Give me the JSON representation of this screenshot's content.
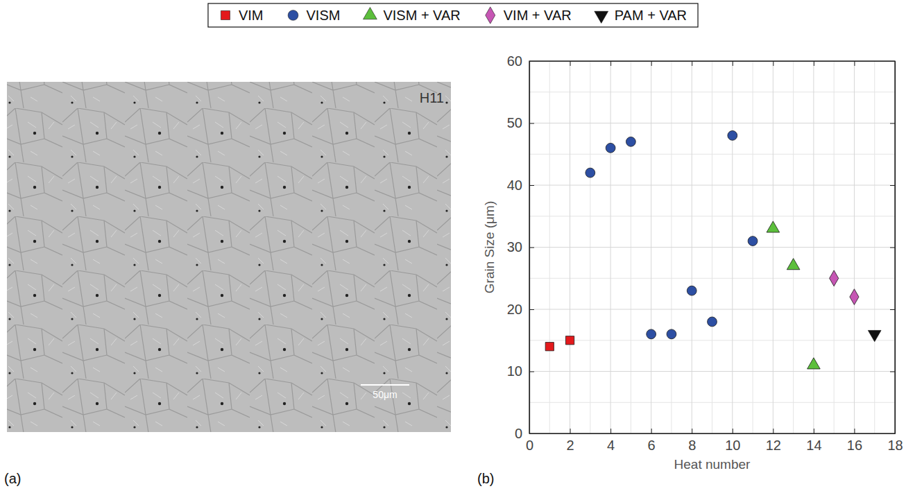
{
  "chart_data": {
    "type": "scatter",
    "x_label": "Heat number",
    "y_label": "Grain Size (μm)",
    "xlim": [
      0,
      18
    ],
    "ylim": [
      0,
      60
    ],
    "xticks": [
      0,
      2,
      4,
      6,
      8,
      10,
      12,
      14,
      16,
      18
    ],
    "yticks": [
      0,
      10,
      20,
      30,
      40,
      50,
      60
    ],
    "grid": true,
    "legend": "top",
    "series": [
      {
        "name": "VIM",
        "color": "#e3191c",
        "marker": "square",
        "x": [
          1,
          2
        ],
        "values": [
          14,
          15
        ]
      },
      {
        "name": "VISM",
        "color": "#2d4fa3",
        "marker": "circle",
        "x": [
          3,
          4,
          5,
          6,
          7,
          8,
          9,
          10,
          11
        ],
        "values": [
          42,
          46,
          47,
          16,
          16,
          23,
          18,
          48,
          31
        ]
      },
      {
        "name": "VISM + VAR",
        "color": "#5cbf3c",
        "marker": "triangle",
        "x": [
          12,
          13,
          14
        ],
        "values": [
          33,
          27,
          11
        ]
      },
      {
        "name": "VIM + VAR",
        "color": "#c656b4",
        "marker": "diamond",
        "x": [
          15,
          16
        ],
        "values": [
          25,
          22
        ]
      },
      {
        "name": "PAM + VAR",
        "color": "#111111",
        "marker": "triangle-down",
        "x": [
          17
        ],
        "values": [
          16
        ]
      }
    ]
  },
  "figure": {
    "panel_labels": [
      "(a)",
      "(b)"
    ],
    "micrograph": {
      "label": "H11",
      "scale_bar": "50μm"
    }
  }
}
